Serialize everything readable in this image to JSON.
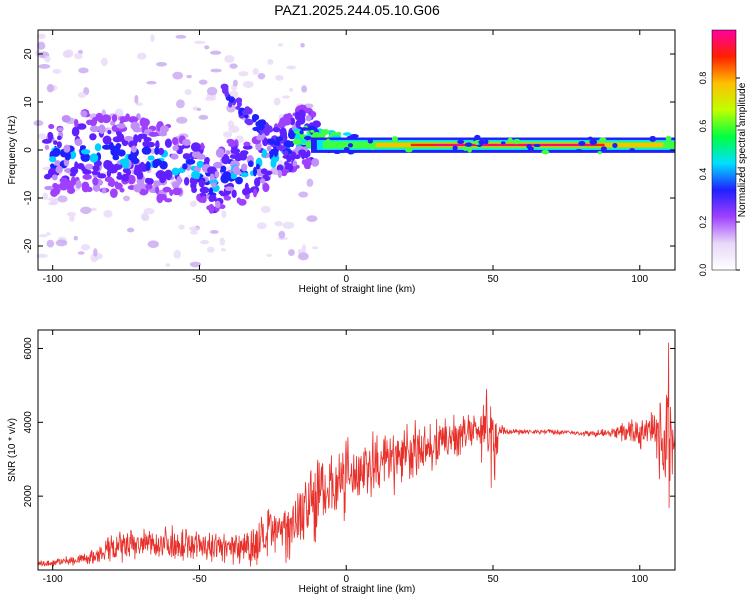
{
  "title": "PAZ1.2025.244.05.10.G06",
  "chart_data": [
    {
      "type": "heatmap",
      "name": "spectrogram",
      "xlabel": "Height of straight line (km)",
      "ylabel": "Frequency (Hz)",
      "xlim": [
        -105,
        112
      ],
      "ylim": [
        -25,
        25
      ],
      "xticks": [
        -100,
        -50,
        0,
        50,
        100
      ],
      "yticks": [
        -20,
        -10,
        0,
        10,
        20
      ],
      "xtick_labels": [
        "-100",
        "-50",
        "0",
        "50",
        "100"
      ],
      "ytick_labels": [
        "-20",
        "-10",
        "0",
        "10",
        "20"
      ],
      "description_series": {
        "name": "dominant frequency ridge",
        "x": [
          -100,
          -90,
          -80,
          -70,
          -60,
          -50,
          -45,
          -40,
          -35,
          -30,
          -25,
          -20,
          -15,
          -10,
          0,
          20,
          50,
          80,
          100,
          110
        ],
        "freq": [
          -2,
          0,
          -1,
          -1,
          -3,
          -4,
          -8,
          -4,
          -5,
          -3,
          -1,
          1,
          3,
          2,
          1.5,
          1,
          1,
          1,
          1.5,
          2
        ]
      },
      "colorbar": {
        "label": "Normalized spectral amplitude",
        "range": [
          0,
          1
        ],
        "ticks": [
          0.0,
          0.2,
          0.4,
          0.6,
          0.8
        ],
        "tick_labels": [
          "0.0",
          "0.2",
          "0.4",
          "0.6",
          "0.8"
        ],
        "colors": [
          "#ffffff",
          "#e8d8f8",
          "#a040ff",
          "#2020ff",
          "#00e0ff",
          "#00ff40",
          "#c0ff00",
          "#ffc000",
          "#ff2000",
          "#ff00a0"
        ]
      }
    },
    {
      "type": "line",
      "name": "snr",
      "xlabel": "Height of straight line (km)",
      "ylabel": "SNR (10 * v/v)",
      "xlim": [
        -105,
        112
      ],
      "ylim": [
        0,
        6500
      ],
      "xticks": [
        -100,
        -50,
        0,
        50,
        100
      ],
      "yticks": [
        2000,
        4000,
        6000
      ],
      "xtick_labels": [
        "-100",
        "-50",
        "0",
        "50",
        "100"
      ],
      "ytick_labels": [
        "2000",
        "4000",
        "6000"
      ],
      "color": "#e8302a",
      "envelope": {
        "x": [
          -105,
          -95,
          -85,
          -80,
          -70,
          -60,
          -50,
          -40,
          -30,
          -20,
          -15,
          -10,
          -5,
          0,
          5,
          10,
          20,
          30,
          40,
          45,
          48,
          50,
          52,
          55,
          60,
          70,
          80,
          90,
          95,
          100,
          105,
          108,
          110,
          112
        ],
        "mean": [
          150,
          250,
          350,
          550,
          700,
          750,
          650,
          600,
          750,
          1200,
          1600,
          2000,
          2300,
          2500,
          2700,
          2800,
          3100,
          3400,
          3700,
          3800,
          3900,
          3000,
          3800,
          3750,
          3750,
          3750,
          3700,
          3700,
          3750,
          3700,
          3700,
          3500,
          3600,
          3600
        ],
        "amplitude": [
          100,
          150,
          250,
          500,
          500,
          550,
          500,
          500,
          800,
          1000,
          1200,
          1300,
          1200,
          1300,
          1100,
          1200,
          1000,
          800,
          600,
          700,
          1400,
          1600,
          300,
          100,
          80,
          80,
          80,
          150,
          300,
          500,
          800,
          1500,
          2900,
          150
        ]
      }
    }
  ]
}
